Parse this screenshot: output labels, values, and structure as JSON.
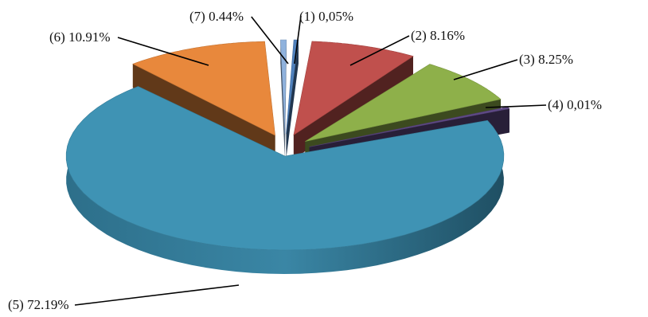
{
  "chart_data": {
    "type": "pie",
    "style": "3d-exploded",
    "title": "",
    "slices": [
      {
        "label": "(1) 0,05%",
        "value": 0.05,
        "color": "#4f81bd"
      },
      {
        "label": "(2) 8.16%",
        "value": 8.16,
        "color": "#c0504d"
      },
      {
        "label": "(3) 8.25%",
        "value": 8.25,
        "color": "#8eb04a"
      },
      {
        "label": "(4) 0,01%",
        "value": 0.01,
        "color": "#5f4a86"
      },
      {
        "label": "(5) 72.19%",
        "value": 72.19,
        "color": "#3f93b4"
      },
      {
        "label": "(6) 10.91%",
        "value": 10.91,
        "color": "#e8883c"
      },
      {
        "label": "(7) 0.44%",
        "value": 0.44,
        "color": "#8fb2dd"
      }
    ]
  }
}
